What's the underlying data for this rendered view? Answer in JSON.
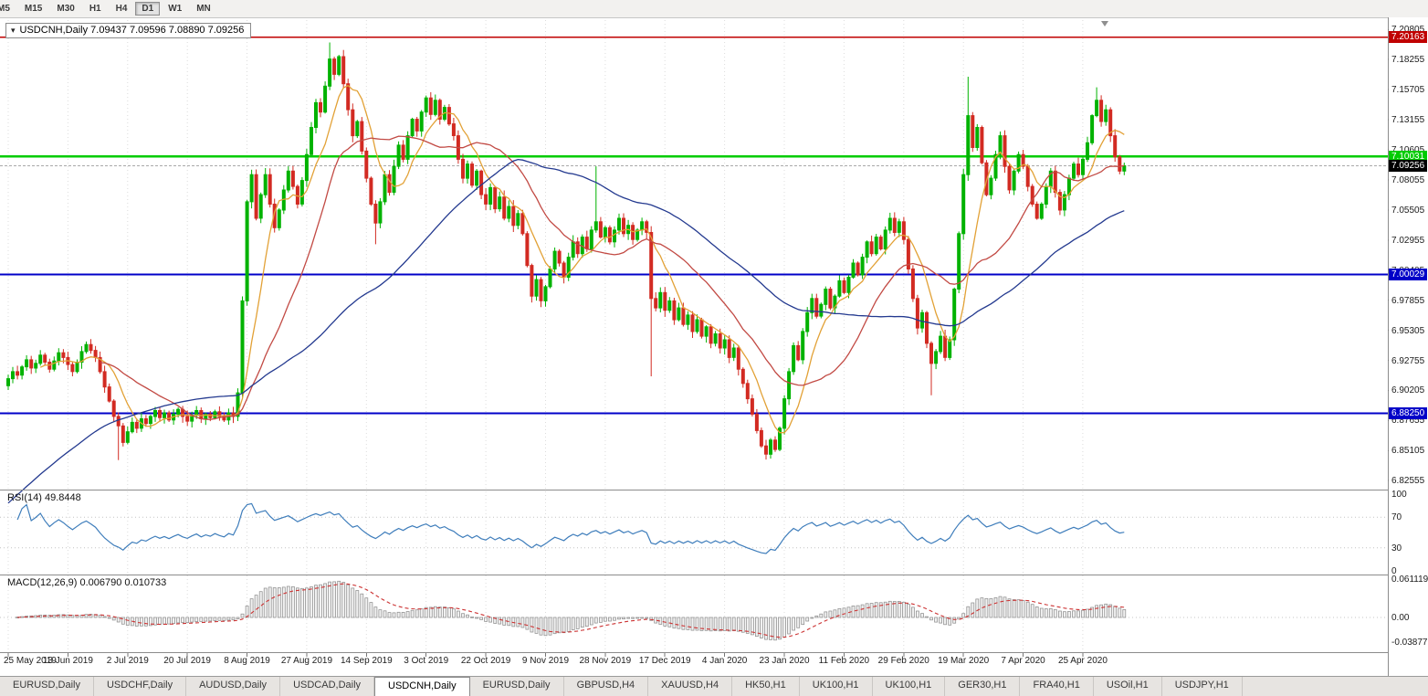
{
  "chart": {
    "header": "USDCNH,Daily 7.09437 7.09596 7.08890 7.09256"
  },
  "timeframes": {
    "items": [
      "M5",
      "M15",
      "M30",
      "H1",
      "H4",
      "D1",
      "W1",
      "MN"
    ],
    "active": "D1"
  },
  "chart_data": {
    "type": "candlestick",
    "symbol": "USDCNH",
    "timeframe": "Daily",
    "current_bar": {
      "open": 7.09437,
      "high": 7.09596,
      "low": 7.0889,
      "close": 7.09256
    },
    "colors": {
      "up": "#00B200",
      "down": "#D22B22",
      "ma_fast": "#E2A136",
      "ma_medium": "#C24A44",
      "ma_slow": "#23398F",
      "rsi_line": "#3E7DBB",
      "macd_hist_fill": "#F0F0F0",
      "macd_hist_stroke": "#8f8f8f",
      "macd_signal": "#CC3333",
      "grid": "#DCDCDC",
      "separator": "#8c8c8c"
    },
    "y_axis": {
      "max": 7.216,
      "min": 6.818,
      "labels": [
        "7.20805",
        "7.18255",
        "7.15705",
        "7.13155",
        "7.10605",
        "7.08055",
        "7.05505",
        "7.02955",
        "7.00405",
        "6.97855",
        "6.95305",
        "6.92755",
        "6.90205",
        "6.87655",
        "6.85105",
        "6.82555"
      ]
    },
    "x_labels": [
      "25 May 2019",
      "13 Jun 2019",
      "2 Jul 2019",
      "20 Jul 2019",
      "8 Aug 2019",
      "27 Aug 2019",
      "14 Sep 2019",
      "3 Oct 2019",
      "22 Oct 2019",
      "9 Nov 2019",
      "28 Nov 2019",
      "17 Dec 2019",
      "4 Jan 2020",
      "23 Jan 2020",
      "11 Feb 2020",
      "29 Feb 2020",
      "19 Mar 2020",
      "7 Apr 2020",
      "25 Apr 2020"
    ],
    "first_open": 6.906,
    "closes": [
      6.912,
      6.918,
      6.915,
      6.922,
      6.928,
      6.921,
      6.925,
      6.932,
      6.926,
      6.92,
      6.927,
      6.934,
      6.93,
      6.924,
      6.918,
      6.926,
      6.935,
      6.941,
      6.936,
      6.93,
      6.918,
      6.905,
      6.893,
      6.88,
      6.872,
      6.858,
      6.867,
      6.875,
      6.87,
      6.878,
      6.874,
      6.88,
      6.885,
      6.879,
      6.883,
      6.877,
      6.882,
      6.886,
      6.88,
      6.876,
      6.881,
      6.885,
      6.878,
      6.882,
      6.879,
      6.884,
      6.88,
      6.877,
      6.883,
      6.88,
      6.9,
      6.978,
      7.062,
      7.085,
      7.048,
      7.068,
      7.085,
      7.06,
      7.04,
      7.055,
      7.072,
      7.088,
      7.075,
      7.06,
      7.08,
      7.102,
      7.125,
      7.146,
      7.138,
      7.16,
      7.183,
      7.17,
      7.185,
      7.162,
      7.14,
      7.118,
      7.13,
      7.105,
      7.082,
      7.06,
      7.044,
      7.062,
      7.085,
      7.07,
      7.092,
      7.11,
      7.098,
      7.118,
      7.132,
      7.122,
      7.138,
      7.15,
      7.136,
      7.148,
      7.132,
      7.142,
      7.128,
      7.118,
      7.098,
      7.082,
      7.094,
      7.076,
      7.088,
      7.068,
      7.06,
      7.074,
      7.056,
      7.066,
      7.048,
      7.058,
      7.042,
      7.052,
      7.035,
      7.008,
      6.982,
      6.996,
      6.978,
      6.99,
      7.005,
      7.02,
      7.01,
      6.998,
      7.015,
      7.028,
      7.018,
      7.032,
      7.022,
      7.038,
      7.045,
      7.032,
      7.04,
      7.028,
      7.038,
      7.048,
      7.035,
      7.042,
      7.03,
      7.038,
      7.045,
      7.036,
      6.98,
      6.972,
      6.985,
      6.97,
      6.978,
      6.962,
      6.972,
      6.958,
      6.966,
      6.952,
      6.962,
      6.948,
      6.956,
      6.942,
      6.95,
      6.938,
      6.945,
      6.93,
      6.938,
      6.92,
      6.908,
      6.895,
      6.882,
      6.868,
      6.855,
      6.848,
      6.86,
      6.852,
      6.87,
      6.895,
      6.918,
      6.94,
      6.928,
      6.952,
      6.968,
      6.98,
      6.965,
      6.975,
      6.988,
      6.972,
      6.982,
      6.995,
      6.985,
      6.998,
      7.01,
      7.0,
      7.015,
      7.028,
      7.018,
      7.032,
      7.022,
      7.038,
      7.048,
      7.036,
      7.045,
      7.03,
      7.005,
      6.98,
      6.955,
      6.968,
      6.942,
      6.925,
      6.935,
      6.948,
      6.93,
      6.945,
      6.988,
      7.035,
      7.085,
      7.135,
      7.108,
      7.125,
      7.095,
      7.068,
      7.082,
      7.102,
      7.118,
      7.092,
      7.072,
      7.088,
      7.102,
      7.092,
      7.075,
      7.06,
      7.048,
      7.06,
      7.075,
      7.088,
      7.07,
      7.055,
      7.068,
      7.082,
      7.094,
      7.085,
      7.098,
      7.112,
      7.135,
      7.148,
      7.13,
      7.14,
      7.118,
      7.1,
      7.088,
      7.0926
    ],
    "wick_overrides": {
      "24": {
        "low": 6.843
      },
      "70": {
        "high": 7.197
      },
      "80": {
        "low": 7.026
      },
      "128": {
        "high": 7.092
      },
      "140": {
        "low": 6.914
      },
      "165": {
        "low": 6.8435
      },
      "201": {
        "low": 6.898
      },
      "209": {
        "high": 7.168
      },
      "237": {
        "high": 7.159
      }
    },
    "levels": [
      {
        "price": 7.20163,
        "label": "7.20163",
        "color": "#C00000",
        "width": 1.5
      },
      {
        "price": 7.10031,
        "label": "7.10031",
        "color": "#00CC00",
        "width": 2.5
      },
      {
        "price": 7.00029,
        "label": "7.00029",
        "color": "#0000C8",
        "width": 2
      },
      {
        "price": 6.8825,
        "label": "6.88250",
        "color": "#0000C8",
        "width": 2
      }
    ],
    "price_line": {
      "price": 7.09256,
      "label": "7.09256",
      "line_color": "#A8A8A8",
      "badge_color": "#000000"
    },
    "moving_averages": [
      {
        "name": "fast",
        "period": 8
      },
      {
        "name": "medium",
        "period": 21
      },
      {
        "name": "slow",
        "period": 60
      }
    ],
    "rsi": {
      "label": "RSI(14) 49.8448",
      "period": 14,
      "current": 49.8448,
      "scale_labels": [
        "100",
        "70",
        "30",
        "0"
      ],
      "dotted_levels": [
        70,
        30
      ]
    },
    "macd": {
      "label": "MACD(12,26,9) 0.006790 0.010733",
      "params": "12,26,9",
      "main": 0.00679,
      "signal": 0.010733,
      "scale_labels": [
        "0.061119",
        "0.00",
        "-0.038777"
      ]
    }
  },
  "tabs": {
    "active_index": 4,
    "items": [
      {
        "label": "EURUSD,Daily"
      },
      {
        "label": "USDCHF,Daily"
      },
      {
        "label": "AUDUSD,Daily"
      },
      {
        "label": "USDCAD,Daily"
      },
      {
        "label": "USDCNH,Daily"
      },
      {
        "label": "EURUSD,Daily"
      },
      {
        "label": "GBPUSD,H4"
      },
      {
        "label": "XAUUSD,H4"
      },
      {
        "label": "HK50,H1"
      },
      {
        "label": "UK100,H1"
      },
      {
        "label": "UK100,H1"
      },
      {
        "label": "GER30,H1"
      },
      {
        "label": "FRA40,H1"
      },
      {
        "label": "USOil,H1"
      },
      {
        "label": "USDJPY,H1"
      }
    ]
  }
}
